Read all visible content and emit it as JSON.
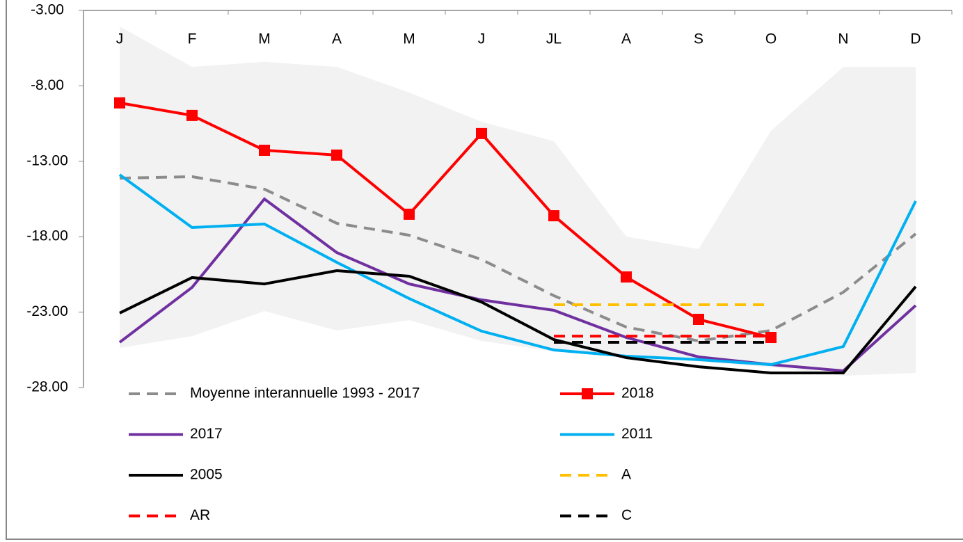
{
  "chart_data": {
    "type": "line",
    "categories": [
      "J",
      "F",
      "M",
      "A",
      "M",
      "J",
      "JL",
      "A",
      "S",
      "O",
      "N",
      "D"
    ],
    "ylim": [
      -28,
      -3
    ],
    "yticks": [
      {
        "value": -3,
        "label": "-3.00"
      },
      {
        "value": -8,
        "label": "-8.00"
      },
      {
        "value": -13,
        "label": "-13.00"
      },
      {
        "value": -18,
        "label": "-18.00"
      },
      {
        "value": -23,
        "label": "-23.00"
      },
      {
        "value": -28,
        "label": "-28.00"
      }
    ],
    "legend": "bottom",
    "band": {
      "color": "#f2f2f2",
      "upper": [
        -4.06,
        -6.74,
        -6.41,
        -6.74,
        -8.44,
        -10.38,
        -11.67,
        -17.99,
        -18.82,
        -10.98,
        -6.74,
        -6.74
      ],
      "lower": [
        -25.37,
        -24.59,
        -22.93,
        -24.22,
        -23.53,
        -24.91,
        -25.6,
        -25.83,
        -26.29,
        -26.66,
        -27.22,
        -27.03
      ]
    },
    "series": [
      {
        "name": "Moyenne interannuelle 1993 - 2017",
        "color": "#8c8c8c",
        "dashed": true,
        "values": [
          -14.12,
          -14.02,
          -14.85,
          -17.11,
          -17.9,
          -19.51,
          -21.91,
          -23.99,
          -24.91,
          -24.22,
          -21.68,
          -17.81
        ]
      },
      {
        "name": "2018",
        "color": "#ff0000",
        "marker": "square",
        "values": [
          -9.13,
          -9.96,
          -12.27,
          -12.59,
          -16.51,
          -11.16,
          -16.61,
          -20.67,
          -23.48,
          -24.68,
          null,
          null
        ]
      },
      {
        "name": "2017",
        "color": "#7030a0",
        "values": [
          -25.0,
          -21.36,
          -15.5,
          -19.05,
          -21.13,
          -22.19,
          -22.88,
          -24.68,
          -25.97,
          -26.48,
          -26.89,
          -22.56
        ]
      },
      {
        "name": "2011",
        "color": "#00b0f0",
        "values": [
          -13.89,
          -17.39,
          -17.16,
          -19.7,
          -22.1,
          -24.26,
          -25.51,
          -25.92,
          -26.15,
          -26.48,
          -25.28,
          -15.64
        ]
      },
      {
        "name": "2005",
        "color": "#000000",
        "values": [
          -23.06,
          -20.71,
          -21.13,
          -20.25,
          -20.62,
          -22.33,
          -24.82,
          -26.02,
          -26.62,
          -27.03,
          -27.03,
          -21.31
        ]
      },
      {
        "name": "A",
        "color": "#ffc000",
        "dashed": true,
        "values": [
          null,
          null,
          null,
          null,
          null,
          null,
          -22.51,
          -22.51,
          -22.51,
          -22.51,
          null,
          null
        ]
      },
      {
        "name": "AR",
        "color": "#ff0000",
        "dashed": true,
        "values": [
          null,
          null,
          null,
          null,
          null,
          null,
          -24.59,
          -24.59,
          -24.59,
          -24.59,
          null,
          null
        ]
      },
      {
        "name": "C",
        "color": "#000000",
        "dashed": true,
        "values": [
          null,
          null,
          null,
          null,
          null,
          null,
          -25.0,
          -25.0,
          -25.0,
          -25.0,
          null,
          null
        ]
      }
    ]
  }
}
